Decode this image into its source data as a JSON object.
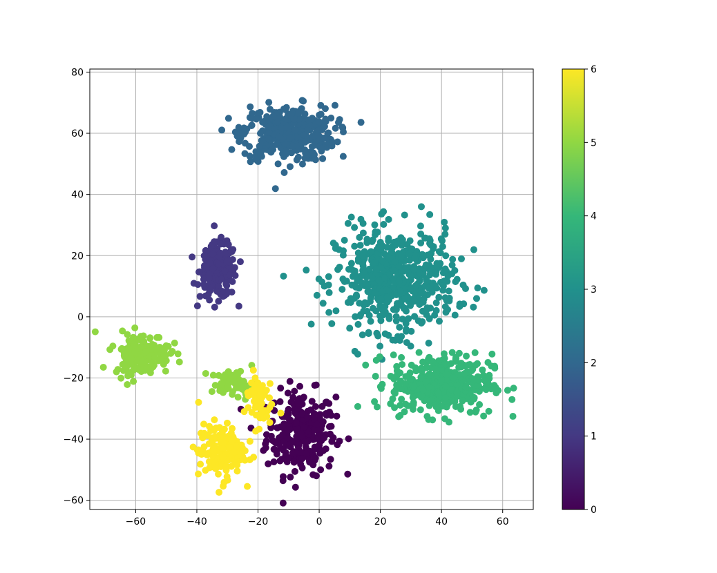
{
  "chart_data": {
    "type": "scatter",
    "title": "",
    "xlabel": "",
    "ylabel": "",
    "xlim": [
      -75,
      70
    ],
    "ylim": [
      -63,
      81
    ],
    "xticks": [
      -60,
      -40,
      -20,
      0,
      20,
      40,
      60
    ],
    "yticks": [
      -60,
      -40,
      -20,
      0,
      20,
      40,
      60,
      80
    ],
    "xtick_labels": [
      "−60",
      "−40",
      "−20",
      "0",
      "20",
      "40",
      "60"
    ],
    "ytick_labels": [
      "−60",
      "−40",
      "−20",
      "0",
      "20",
      "40",
      "60",
      "80"
    ],
    "grid": true,
    "colormap": "viridis",
    "colorbar": {
      "min": 0,
      "max": 6,
      "ticks": [
        0,
        1,
        2,
        3,
        4,
        5,
        6
      ],
      "tick_labels": [
        "0",
        "1",
        "2",
        "3",
        "4",
        "5",
        "6"
      ],
      "colors": [
        "#440154",
        "#443983",
        "#31688e",
        "#21918c",
        "#35b779",
        "#90d743",
        "#fde725"
      ]
    },
    "clusters": [
      {
        "label": 0,
        "center": [
          -6,
          -38
        ],
        "spread": [
          7.5,
          9
        ],
        "count": 280
      },
      {
        "label": 1,
        "center": [
          -33,
          15
        ],
        "spread": [
          4,
          6
        ],
        "count": 200
      },
      {
        "label": 2,
        "center": [
          -10,
          60
        ],
        "spread": [
          10,
          6
        ],
        "count": 360
      },
      {
        "label": 3,
        "center": [
          25,
          12
        ],
        "spread": [
          13,
          11
        ],
        "count": 560
      },
      {
        "label": 4,
        "center": [
          40,
          -22
        ],
        "spread": [
          11,
          6.5
        ],
        "count": 400
      },
      {
        "label": 5,
        "center": [
          -58,
          -12
        ],
        "spread": [
          6,
          4.5
        ],
        "count": 180
      },
      {
        "label": 5,
        "center": [
          -28,
          -22
        ],
        "spread": [
          5,
          3
        ],
        "count": 60
      },
      {
        "label": 6,
        "center": [
          -32,
          -44
        ],
        "spread": [
          5,
          6
        ],
        "count": 150
      },
      {
        "label": 6,
        "center": [
          -20,
          -27
        ],
        "spread": [
          3,
          6
        ],
        "count": 60
      }
    ]
  }
}
